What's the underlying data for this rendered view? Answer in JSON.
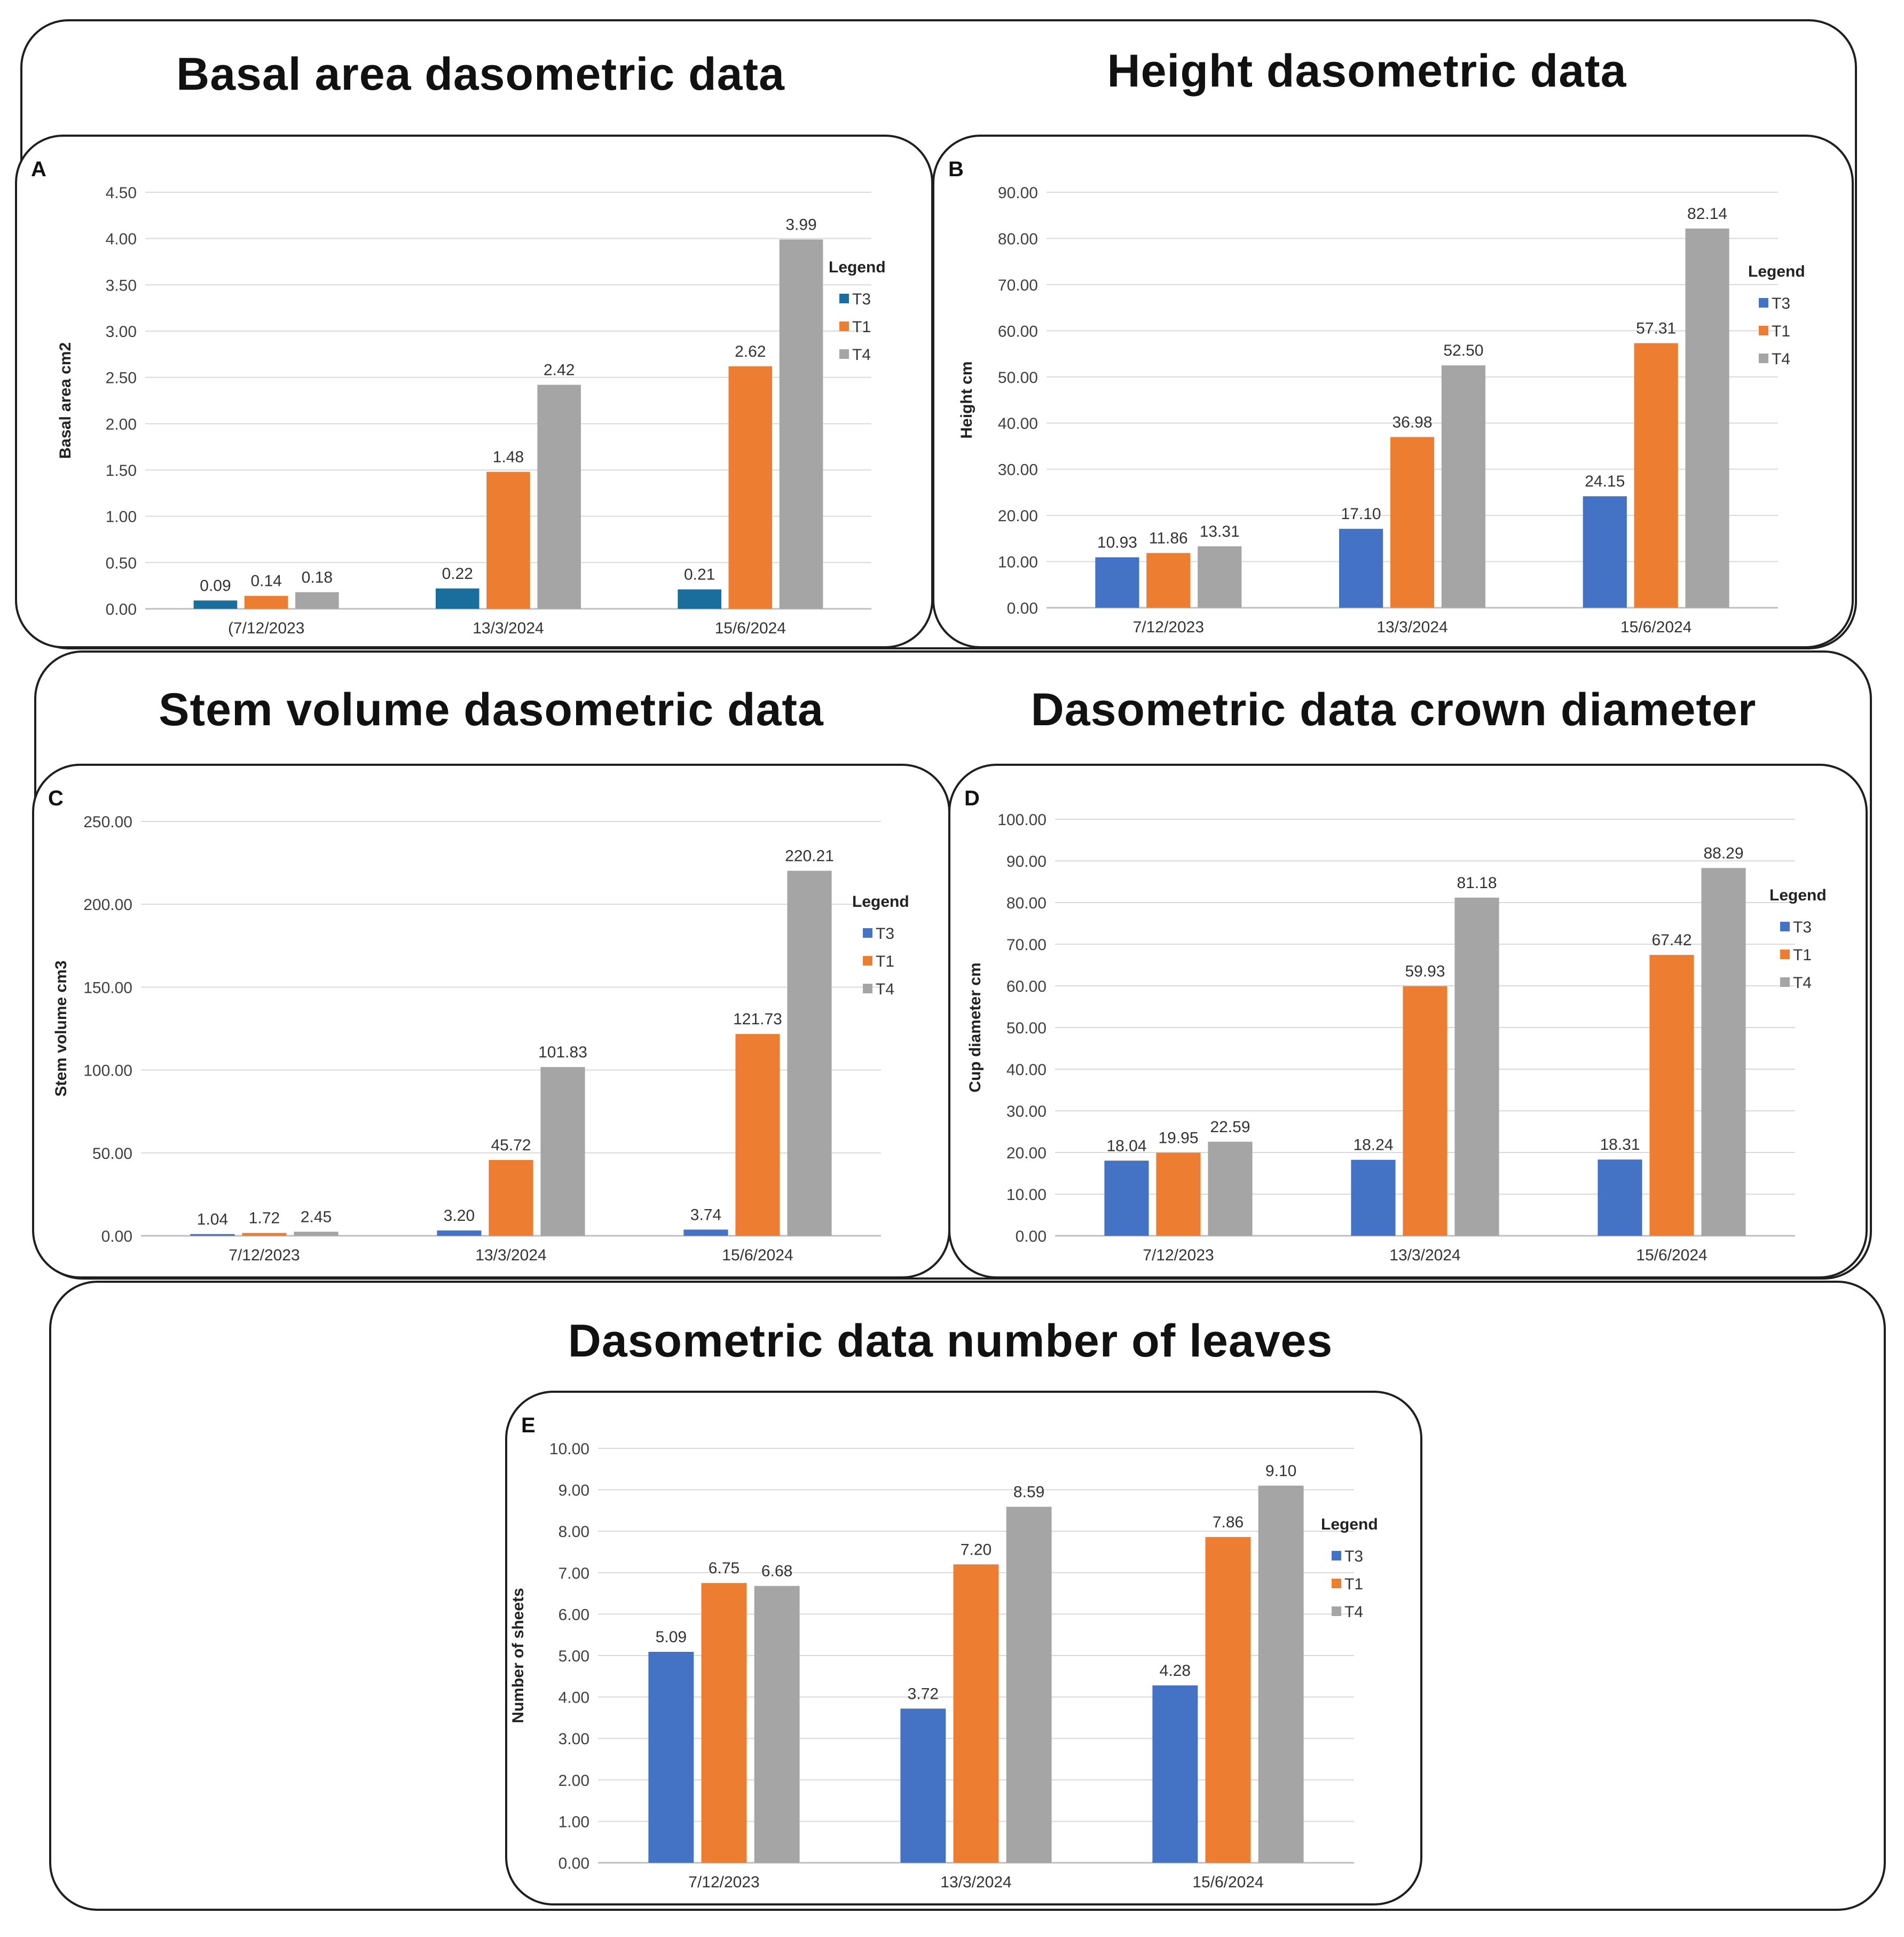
{
  "section_titles": {
    "a": "Basal area dasometric data",
    "b": "Height dasometric data",
    "c": "Stem volume dasometric data",
    "d": "Dasometric data crown diameter",
    "e": "Dasometric data number of leaves"
  },
  "colors": {
    "T3_teal": "#1a6e9e",
    "T3": "#4472c4",
    "T1": "#ed7d31",
    "T4": "#a5a5a5"
  },
  "chart_data": [
    {
      "panel": "A",
      "type": "bar",
      "title": "Basal area dasometric data",
      "xlabel": "",
      "ylabel": "Basal area cm2",
      "ylim": [
        0,
        4.5
      ],
      "ytick_step": 0.5,
      "yticks": [
        "0.00",
        "0.50",
        "1.00",
        "1.50",
        "2.00",
        "2.50",
        "3.00",
        "3.50",
        "4.00",
        "4.50"
      ],
      "categories": [
        "(7/12/2023",
        "13/3/2024",
        "15/6/2024"
      ],
      "legend_title": "Legend",
      "series": [
        {
          "name": "T3",
          "color": "#1a6e9e",
          "values": [
            0.09,
            0.22,
            0.21
          ],
          "labels": [
            "0.09",
            "0.22",
            "0.21"
          ]
        },
        {
          "name": "T1",
          "color": "#ed7d31",
          "values": [
            0.14,
            1.48,
            2.62
          ],
          "labels": [
            "0.14",
            "1.48",
            "2.62"
          ]
        },
        {
          "name": "T4",
          "color": "#a5a5a5",
          "values": [
            0.18,
            2.42,
            3.99
          ],
          "labels": [
            "0.18",
            "2.42",
            "3.99"
          ]
        }
      ]
    },
    {
      "panel": "B",
      "type": "bar",
      "title": "Height dasometric data",
      "xlabel": "",
      "ylabel": "Height cm",
      "ylim": [
        0,
        90
      ],
      "ytick_step": 10,
      "yticks": [
        "0.00",
        "10.00",
        "20.00",
        "30.00",
        "40.00",
        "50.00",
        "60.00",
        "70.00",
        "80.00",
        "90.00"
      ],
      "categories": [
        "7/12/2023",
        "13/3/2024",
        "15/6/2024"
      ],
      "legend_title": "Legend",
      "series": [
        {
          "name": "T3",
          "color": "#4472c4",
          "values": [
            10.93,
            17.1,
            24.15
          ],
          "labels": [
            "10.93",
            "17.10",
            "24.15"
          ]
        },
        {
          "name": "T1",
          "color": "#ed7d31",
          "values": [
            11.86,
            36.98,
            57.31
          ],
          "labels": [
            "11.86",
            "36.98",
            "57.31"
          ]
        },
        {
          "name": "T4",
          "color": "#a5a5a5",
          "values": [
            13.31,
            52.5,
            82.14
          ],
          "labels": [
            "13.31",
            "52.50",
            "82.14"
          ]
        }
      ]
    },
    {
      "panel": "C",
      "type": "bar",
      "title": "Stem volume dasometric data",
      "xlabel": "",
      "ylabel": "Stem volume cm3",
      "ylim": [
        0,
        250
      ],
      "ytick_step": 50,
      "yticks": [
        "0.00",
        "50.00",
        "100.00",
        "150.00",
        "200.00",
        "250.00"
      ],
      "categories": [
        "7/12/2023",
        "13/3/2024",
        "15/6/2024"
      ],
      "legend_title": "Legend",
      "series": [
        {
          "name": "T3",
          "color": "#4472c4",
          "values": [
            1.04,
            3.2,
            3.74
          ],
          "labels": [
            "1.04",
            "3.20",
            "3.74"
          ]
        },
        {
          "name": "T1",
          "color": "#ed7d31",
          "values": [
            1.72,
            45.72,
            121.73
          ],
          "labels": [
            "1.72",
            "45.72",
            "121.73"
          ]
        },
        {
          "name": "T4",
          "color": "#a5a5a5",
          "values": [
            2.45,
            101.83,
            220.21
          ],
          "labels": [
            "2.45",
            "101.83",
            "220.21"
          ]
        }
      ]
    },
    {
      "panel": "D",
      "type": "bar",
      "title": "Dasometric data crown diameter",
      "xlabel": "",
      "ylabel": "Cup diameter cm",
      "ylim": [
        0,
        100
      ],
      "ytick_step": 10,
      "yticks": [
        "0.00",
        "10.00",
        "20.00",
        "30.00",
        "40.00",
        "50.00",
        "60.00",
        "70.00",
        "80.00",
        "90.00",
        "100.00"
      ],
      "categories": [
        "7/12/2023",
        "13/3/2024",
        "15/6/2024"
      ],
      "legend_title": "Legend",
      "series": [
        {
          "name": "T3",
          "color": "#4472c4",
          "values": [
            18.04,
            18.24,
            18.31
          ],
          "labels": [
            "18.04",
            "18.24",
            "18.31"
          ]
        },
        {
          "name": "T1",
          "color": "#ed7d31",
          "values": [
            19.95,
            59.93,
            67.42
          ],
          "labels": [
            "19.95",
            "59.93",
            "67.42"
          ]
        },
        {
          "name": "T4",
          "color": "#a5a5a5",
          "values": [
            22.59,
            81.18,
            88.29
          ],
          "labels": [
            "22.59",
            "81.18",
            "88.29"
          ]
        }
      ]
    },
    {
      "panel": "E",
      "type": "bar",
      "title": "Dasometric data number of leaves",
      "xlabel": "",
      "ylabel": "Number of sheets",
      "ylim": [
        0,
        10
      ],
      "ytick_step": 1,
      "yticks": [
        "0.00",
        "1.00",
        "2.00",
        "3.00",
        "4.00",
        "5.00",
        "6.00",
        "7.00",
        "8.00",
        "9.00",
        "10.00"
      ],
      "categories": [
        "7/12/2023",
        "13/3/2024",
        "15/6/2024"
      ],
      "legend_title": "Legend",
      "series": [
        {
          "name": "T3",
          "color": "#4472c4",
          "values": [
            5.09,
            3.72,
            4.28
          ],
          "labels": [
            "5.09",
            "3.72",
            "4.28"
          ]
        },
        {
          "name": "T1",
          "color": "#ed7d31",
          "values": [
            6.75,
            7.2,
            7.86
          ],
          "labels": [
            "6.75",
            "7.20",
            "7.86"
          ]
        },
        {
          "name": "T4",
          "color": "#a5a5a5",
          "values": [
            6.68,
            8.59,
            9.1
          ],
          "labels": [
            "6.68",
            "8.59",
            "9.10"
          ]
        }
      ]
    }
  ]
}
